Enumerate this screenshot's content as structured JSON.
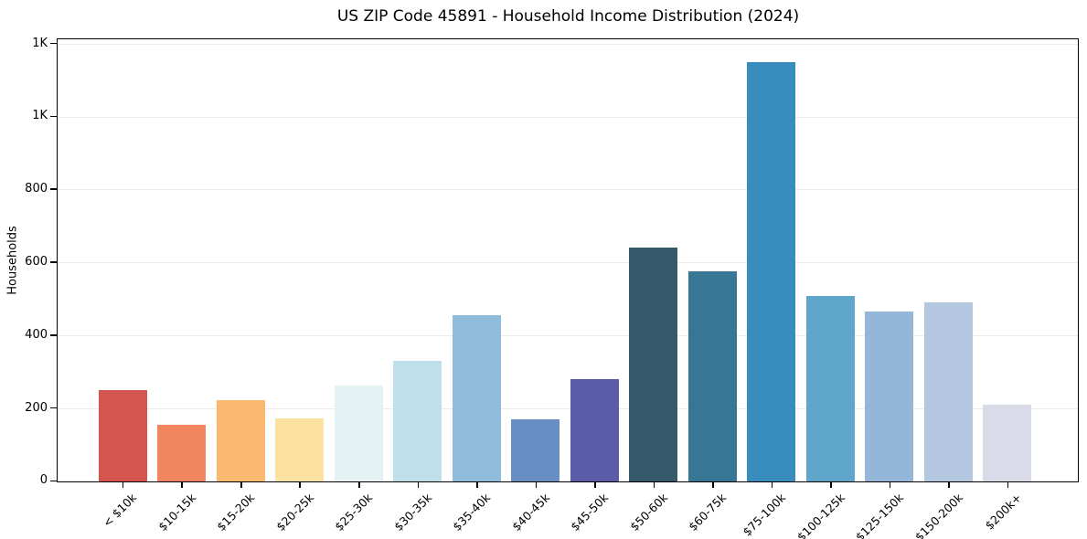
{
  "chart_data": {
    "type": "bar",
    "title": "US ZIP Code 45891 - Household Income Distribution (2024)",
    "xlabel": "",
    "ylabel": "Households",
    "categories": [
      "< $10k",
      "$10-15k",
      "$15-20k",
      "$20-25k",
      "$25-30k",
      "$30-35k",
      "$35-40k",
      "$40-45k",
      "$45-50k",
      "$50-60k",
      "$60-75k",
      "$75-100k",
      "$100-125k",
      "$125-150k",
      "$150-200k",
      "$200k+"
    ],
    "values": [
      252,
      155,
      223,
      173,
      263,
      332,
      457,
      171,
      280,
      641,
      577,
      1150,
      509,
      466,
      491,
      211
    ],
    "bar_colors": [
      "#d4564e",
      "#f2865f",
      "#fab871",
      "#fce2a0",
      "#e5f2f3",
      "#bfe0ea",
      "#90bcdc",
      "#678fc3",
      "#5b5ca9",
      "#365a6c",
      "#377795",
      "#388cbe",
      "#5fa6cb",
      "#94b6d9",
      "#b4c7e0",
      "#d9dbe8"
    ],
    "ylim": [
      0,
      1210
    ],
    "ytick_values": [
      0,
      200,
      400,
      600,
      800,
      1000,
      1200
    ],
    "ytick_labels": [
      "0",
      "200",
      "400",
      "600",
      "800",
      "1K",
      "1K"
    ],
    "grid": "horizontal",
    "grid_color": "#ececec",
    "legend": "none",
    "background": "#ffffff",
    "spine_color": "#000000"
  }
}
